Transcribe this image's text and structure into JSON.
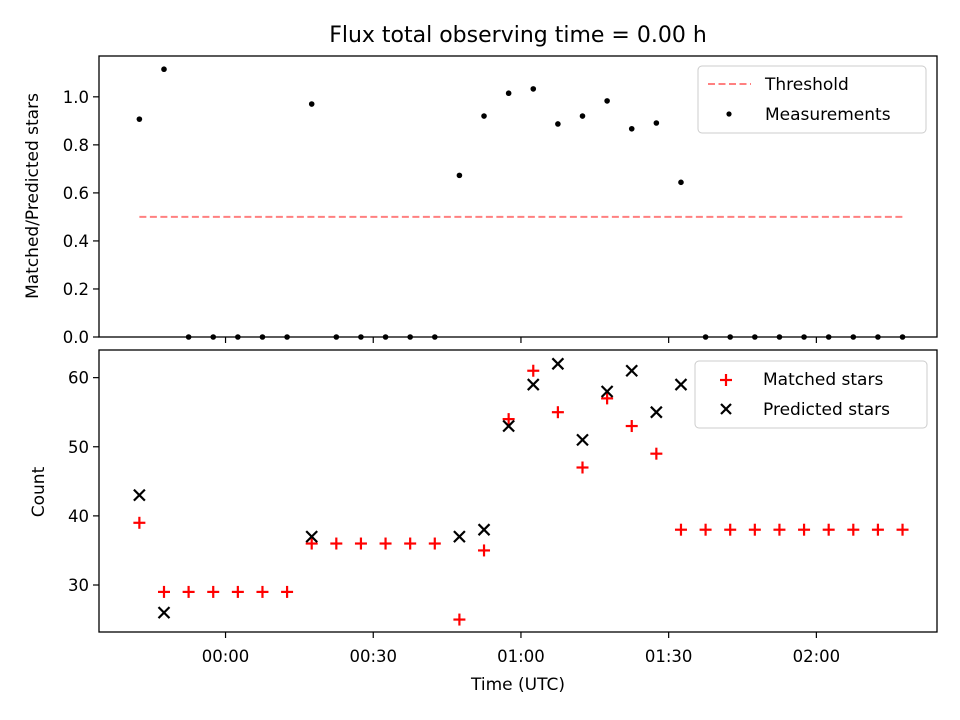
{
  "chart_data": [
    {
      "type": "scatter",
      "title": "Flux total observing time = 0.00 h",
      "xlabel": "",
      "ylabel": "Matched/Predicted stars",
      "ylim": [
        0,
        1.17
      ],
      "yticks": [
        "0.0",
        "0.2",
        "0.4",
        "0.6",
        "0.8",
        "1.0"
      ],
      "ytick_values": [
        0,
        0.2,
        0.4,
        0.6,
        0.8,
        1.0
      ],
      "x_unit": "minutes relative to 00:00 UTC",
      "xlim": [
        -25.7,
        144.5
      ],
      "threshold": {
        "name": "Threshold",
        "value": 0.5,
        "x_start": -17.5,
        "x_end": 137.5,
        "color": "#ff8080"
      },
      "series": [
        {
          "name": "Measurements",
          "color": "#000000",
          "x": [
            -17.5,
            -12.5,
            -7.5,
            -2.5,
            2.5,
            7.5,
            12.5,
            17.5,
            22.5,
            27.5,
            32.5,
            37.5,
            42.5,
            47.5,
            52.5,
            57.5,
            62.5,
            67.5,
            72.5,
            77.5,
            82.5,
            87.5,
            92.5,
            97.5,
            102.5,
            107.5,
            112.5,
            117.5,
            122.5,
            127.5,
            132.5,
            137.5
          ],
          "y": [
            0.907,
            1.115,
            0.0,
            0.0,
            0.0,
            0.0,
            0.0,
            0.97,
            0.0,
            0.0,
            0.0,
            0.0,
            0.0,
            0.673,
            0.92,
            1.015,
            1.033,
            0.887,
            0.92,
            0.983,
            0.867,
            0.891,
            0.644,
            0.0,
            0.0,
            0.0,
            0.0,
            0.0,
            0.0,
            0.0,
            0.0,
            0.0
          ]
        }
      ],
      "legend": {
        "entries": [
          "Threshold",
          "Measurements"
        ],
        "placement": "top-right"
      }
    },
    {
      "type": "scatter",
      "title": "",
      "xlabel": "Time (UTC)",
      "ylabel": "Count",
      "ylim": [
        23.2,
        64
      ],
      "yticks": [
        "30",
        "40",
        "50",
        "60"
      ],
      "ytick_values": [
        30,
        40,
        50,
        60
      ],
      "xticks": [
        "00:00",
        "00:30",
        "01:00",
        "01:30",
        "02:00"
      ],
      "xtick_values": [
        0,
        30,
        60,
        90,
        120
      ],
      "x_unit": "minutes relative to 00:00 UTC",
      "xlim": [
        -25.7,
        144.5
      ],
      "series": [
        {
          "name": "Matched stars",
          "marker": "+",
          "color": "#ff0000",
          "x": [
            -17.5,
            -12.5,
            -7.5,
            -2.5,
            2.5,
            7.5,
            12.5,
            17.5,
            22.5,
            27.5,
            32.5,
            37.5,
            42.5,
            47.5,
            52.5,
            57.5,
            62.5,
            67.5,
            72.5,
            77.5,
            82.5,
            87.5,
            92.5,
            97.5,
            102.5,
            107.5,
            112.5,
            117.5,
            122.5,
            127.5,
            132.5,
            137.5
          ],
          "y": [
            39,
            29,
            29,
            29,
            29,
            29,
            29,
            36,
            36,
            36,
            36,
            36,
            36,
            25,
            35,
            54,
            61,
            55,
            47,
            57,
            53,
            49,
            38,
            38,
            38,
            38,
            38,
            38,
            38,
            38,
            38,
            38
          ]
        },
        {
          "name": "Predicted stars",
          "marker": "x",
          "color": "#000000",
          "x": [
            -17.5,
            -12.5,
            17.5,
            47.5,
            52.5,
            57.5,
            62.5,
            67.5,
            72.5,
            77.5,
            82.5,
            87.5,
            92.5
          ],
          "y": [
            43,
            26,
            37,
            37,
            38,
            53,
            59,
            62,
            51,
            58,
            61,
            55,
            59
          ]
        }
      ],
      "legend": {
        "entries": [
          "Matched stars",
          "Predicted stars"
        ],
        "placement": "top-right"
      }
    }
  ]
}
